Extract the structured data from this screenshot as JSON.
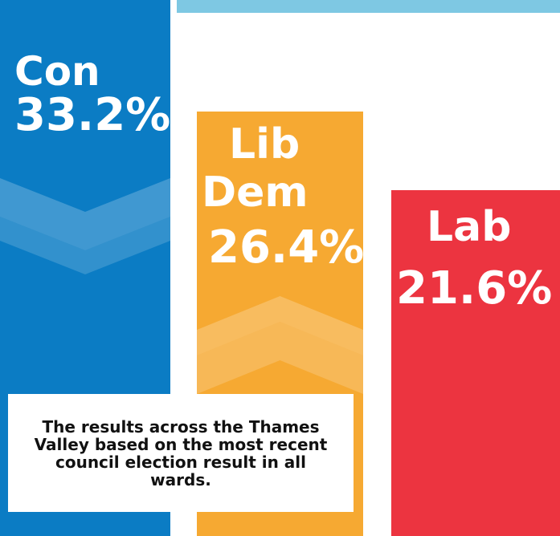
{
  "chart_data": {
    "type": "bar",
    "categories": [
      "Con",
      "Lib Dem",
      "Lab"
    ],
    "values": [
      33.2,
      26.4,
      21.6
    ],
    "unit": "%",
    "labels": [
      {
        "party": "Con",
        "value_text": "33.2%"
      },
      {
        "party": "Lib Dem",
        "party_lines": [
          "Lib",
          "Dem"
        ],
        "value_text": "26.4%"
      },
      {
        "party": "Lab",
        "value_text": "21.6%"
      }
    ],
    "colors": [
      "#0b7cc4",
      "#f6a932",
      "#ec3440"
    ],
    "trend": [
      "down",
      "up",
      "none"
    ],
    "accent_strip_color": "#7ec8e3"
  },
  "note": "The results across the Thames Valley based on the most recent council election result in all wards."
}
